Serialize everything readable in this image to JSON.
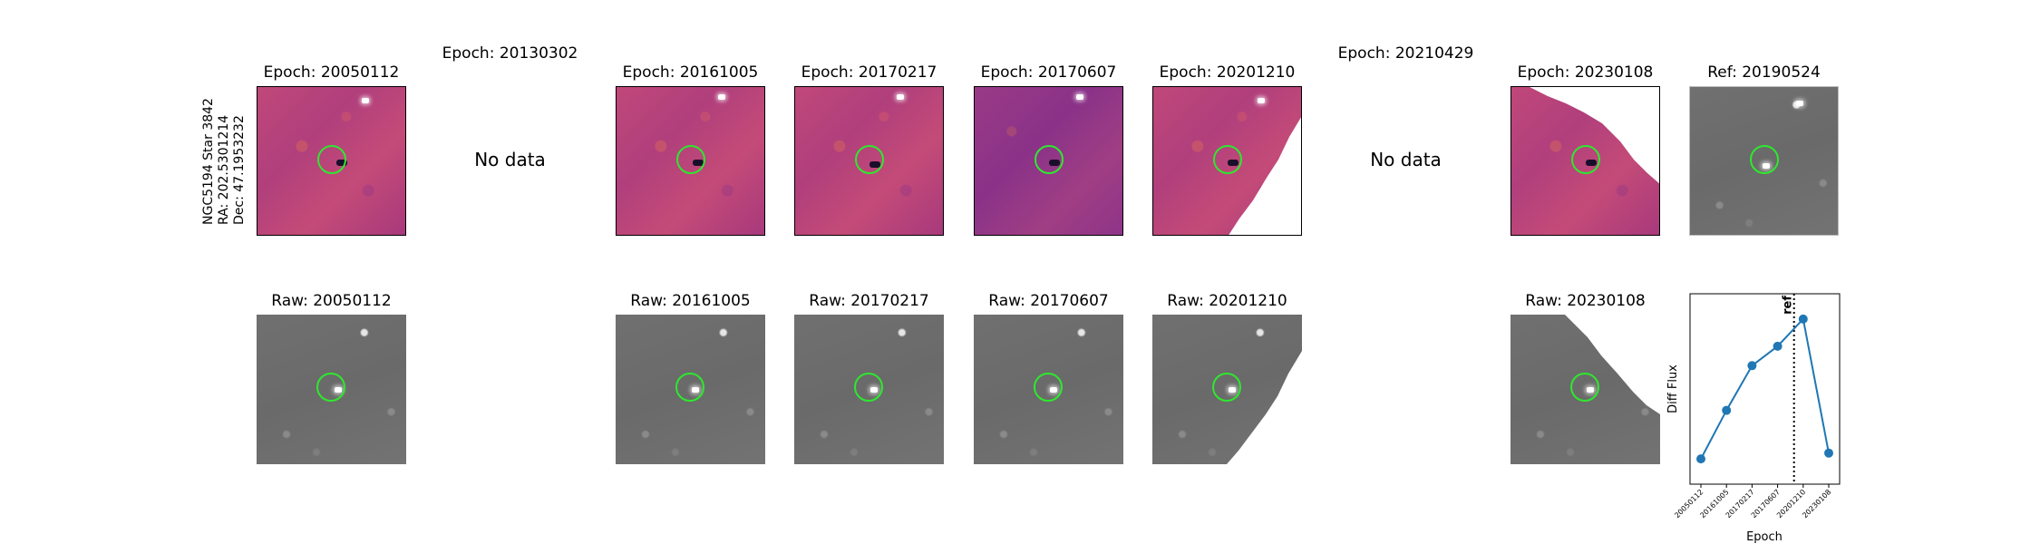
{
  "star_label": {
    "name": "NGC5194 Star 3842",
    "ra": "RA: 202.5301214",
    "dec": "Dec: 47.1953232"
  },
  "diff_titles": {
    "e1": "Epoch: 20050112",
    "e2": "Epoch: 20130302",
    "e3": "Epoch: 20161005",
    "e4": "Epoch: 20170217",
    "e5": "Epoch: 20170607",
    "e6": "Epoch: 20201210",
    "e7": "Epoch: 20210429",
    "e8": "Epoch: 20230108",
    "ref": "Ref: 20190524"
  },
  "no_data_text": "No data",
  "raw_titles": {
    "r1": "Raw: 20050112",
    "r3": "Raw: 20161005",
    "r4": "Raw: 20170217",
    "r5": "Raw: 20170607",
    "r6": "Raw: 20201210",
    "r8": "Raw: 20230108"
  },
  "colors": {
    "circle": "#2ee82e",
    "line": "#1f77b4",
    "ref_line": "#000000"
  },
  "chart_data": {
    "type": "line",
    "xlabel": "Epoch",
    "ylabel": "Diff Flux",
    "categories": [
      "20050112",
      "20161005",
      "20170217",
      "20170607",
      "20201210",
      "20230108"
    ],
    "values": [
      0.05,
      0.3,
      0.53,
      0.63,
      0.77,
      0.08
    ],
    "ylim": [
      -0.08,
      0.9
    ],
    "ref_line": {
      "label": "ref",
      "position_between": [
        "20170607",
        "20201210"
      ],
      "style": "dotted"
    },
    "grid": false,
    "legend": "none"
  }
}
